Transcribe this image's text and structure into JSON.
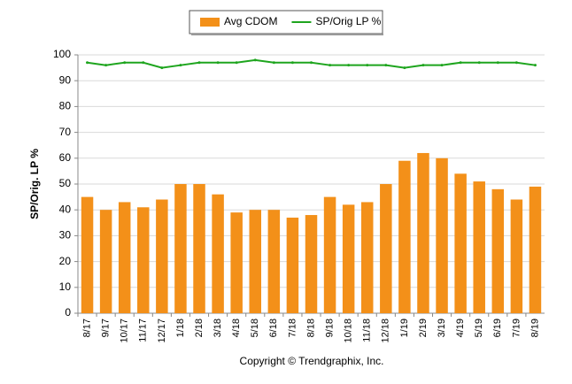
{
  "chart_data": {
    "type": "bar",
    "y_label": "SP/Orig. LP %",
    "footer": "Copyright © Trendgraphix, Inc.",
    "categories": [
      "8/17",
      "9/17",
      "10/17",
      "11/17",
      "12/17",
      "1/18",
      "2/18",
      "3/18",
      "4/18",
      "5/18",
      "6/18",
      "7/18",
      "8/18",
      "9/18",
      "10/18",
      "11/18",
      "12/18",
      "1/19",
      "2/19",
      "3/19",
      "4/19",
      "5/19",
      "6/19",
      "7/19",
      "8/19"
    ],
    "series": [
      {
        "name": "Avg CDOM",
        "type": "bar",
        "color": "#f39019",
        "values": [
          45,
          40,
          43,
          41,
          44,
          50,
          50,
          46,
          39,
          40,
          40,
          37,
          38,
          45,
          42,
          43,
          50,
          59,
          62,
          60,
          54,
          51,
          48,
          44,
          49
        ]
      },
      {
        "name": "SP/Orig LP %",
        "type": "line",
        "color": "#1ea51e",
        "values": [
          97,
          96,
          97,
          97,
          95,
          96,
          97,
          97,
          97,
          98,
          97,
          97,
          97,
          96,
          96,
          96,
          96,
          95,
          96,
          96,
          97,
          97,
          97,
          97,
          96
        ]
      }
    ],
    "ylim": [
      0,
      100
    ],
    "yticks": [
      0,
      10,
      20,
      30,
      40,
      50,
      60,
      70,
      80,
      90,
      100
    ],
    "grid": true,
    "legend": "top"
  }
}
